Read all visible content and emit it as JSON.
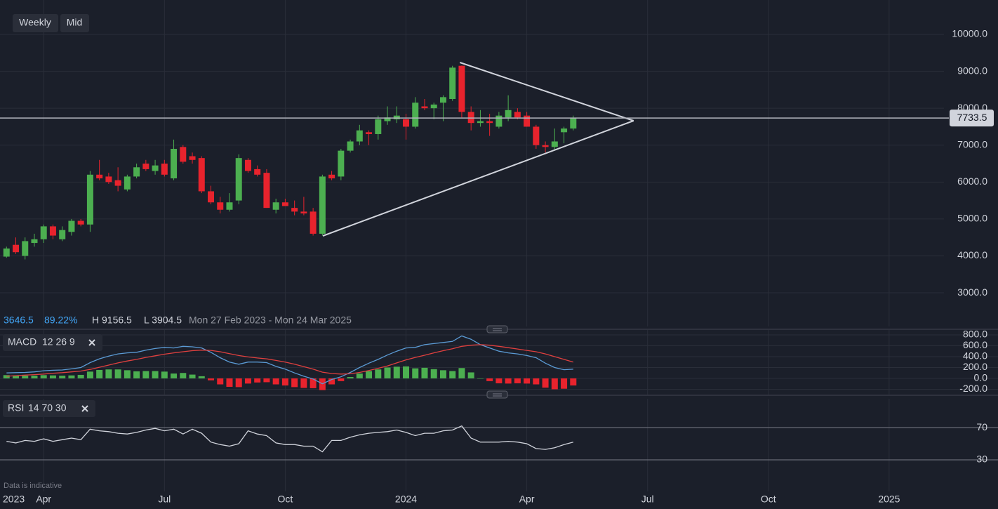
{
  "toolbar": {
    "interval": "Weekly",
    "mode": "Mid"
  },
  "legend_line": {
    "change": "3646.5",
    "change_pct": "89.22%",
    "high": "H 9156.5",
    "low": "L 3904.5",
    "range": "Mon 27 Feb 2023 - Mon 24 Mar 2025"
  },
  "footer_note": "Data is indicative",
  "chart_data": [
    {
      "type": "candlestick",
      "x_start_label": "2023",
      "xlim": [
        -4.7,
        96.9
      ],
      "xticks": [
        {
          "value": 0,
          "label": "Apr"
        },
        {
          "value": 13,
          "label": "Jul"
        },
        {
          "value": 26,
          "label": "Oct"
        },
        {
          "value": 39,
          "label": "2024"
        },
        {
          "value": 52,
          "label": "Apr"
        },
        {
          "value": 65,
          "label": "Jul"
        },
        {
          "value": 78,
          "label": "Oct"
        },
        {
          "value": 91,
          "label": "2025"
        }
      ],
      "ylim": [
        2088,
        10932
      ],
      "yticks": [
        {
          "value": 3000,
          "label": "3000.0"
        },
        {
          "value": 4000,
          "label": "4000.0"
        },
        {
          "value": 5000,
          "label": "5000.0"
        },
        {
          "value": 6000,
          "label": "6000.0"
        },
        {
          "value": 7000,
          "label": "7000.0"
        },
        {
          "value": 8000,
          "label": "8000.0"
        },
        {
          "value": 9000,
          "label": "9000.0"
        },
        {
          "value": 10000,
          "label": "10000.0"
        }
      ],
      "grid": true,
      "up_color": "#4caf50",
      "down_color": "#e8232d",
      "x": [
        -4,
        -3,
        -2,
        -1,
        0,
        1,
        2,
        3,
        4,
        5,
        6,
        7,
        8,
        9,
        10,
        11,
        12,
        13,
        14,
        15,
        16,
        17,
        18,
        19,
        20,
        21,
        22,
        23,
        24,
        25,
        26,
        27,
        28,
        29,
        30,
        31,
        32,
        33,
        34,
        35,
        36,
        37,
        38,
        39,
        40,
        41,
        42,
        43,
        44,
        45,
        46,
        47,
        48,
        49,
        50,
        51,
        52,
        53,
        54,
        55,
        56,
        57
      ],
      "open": [
        3980,
        4300,
        4000,
        4350,
        4450,
        4800,
        4450,
        4650,
        4950,
        4850,
        6200,
        6150,
        6050,
        5800,
        6150,
        6500,
        6300,
        6500,
        6100,
        6950,
        6700,
        6650,
        5750,
        5450,
        5250,
        5500,
        6600,
        6350,
        6250,
        5250,
        5450,
        5300,
        5200,
        5200,
        4600,
        6200,
        6150,
        6850,
        7100,
        7350,
        7300,
        7650,
        7700,
        7700,
        7500,
        8050,
        8000,
        8150,
        8250,
        9150,
        7900,
        7600,
        7650,
        7500,
        7750,
        7900,
        7800,
        7500,
        7000,
        6950,
        7350,
        7450
      ],
      "high": [
        4250,
        4500,
        4500,
        4600,
        4850,
        4850,
        4800,
        5000,
        5000,
        6300,
        6600,
        6250,
        6400,
        6200,
        6500,
        6600,
        6600,
        6600,
        7150,
        7000,
        6800,
        6700,
        5900,
        5600,
        5700,
        6750,
        6650,
        6450,
        6350,
        5550,
        5550,
        5500,
        5600,
        5300,
        6200,
        6300,
        6900,
        7150,
        7550,
        7400,
        7800,
        8050,
        8050,
        7850,
        8300,
        8250,
        8150,
        8350,
        9150,
        9156.5,
        8050,
        7950,
        7850,
        7900,
        8350,
        8000,
        7900,
        7550,
        7100,
        7450,
        7500,
        7800
      ],
      "low": [
        3950,
        4050,
        3904.5,
        4250,
        4350,
        4450,
        4400,
        4550,
        4800,
        4650,
        6050,
        5950,
        5750,
        5750,
        6100,
        6300,
        6200,
        6150,
        6050,
        6500,
        6500,
        5700,
        5400,
        5150,
        5200,
        5400,
        6250,
        6150,
        5300,
        5150,
        5350,
        5100,
        5100,
        4550,
        4550,
        6050,
        6050,
        6800,
        7000,
        7000,
        7150,
        7550,
        7600,
        7150,
        7450,
        7950,
        7700,
        7650,
        8200,
        7750,
        7400,
        7500,
        7250,
        7450,
        7650,
        7700,
        7500,
        6900,
        6800,
        6850,
        7050,
        7400
      ],
      "close": [
        4200,
        4100,
        4400,
        4450,
        4800,
        4550,
        4700,
        4950,
        4850,
        6200,
        6100,
        6000,
        5900,
        6150,
        6400,
        6350,
        6450,
        6200,
        6900,
        6550,
        6600,
        5750,
        5450,
        5250,
        5450,
        6650,
        6300,
        6200,
        5300,
        5450,
        5350,
        5200,
        5150,
        4600,
        6150,
        6100,
        6850,
        7100,
        7400,
        7300,
        7700,
        7750,
        7800,
        7500,
        8150,
        8000,
        8100,
        8300,
        9100,
        7900,
        7600,
        7650,
        7600,
        7800,
        7950,
        7750,
        7500,
        7000,
        6950,
        7100,
        7450,
        7733.5
      ],
      "trendlines": [
        {
          "x": [
            44.8,
            63.5
          ],
          "y": [
            9239,
            7660
          ]
        },
        {
          "x": [
            30.05,
            63.5
          ],
          "y": [
            4541,
            7660
          ]
        }
      ],
      "trendline_color": "#d1d4dc",
      "last_price": {
        "value": 7733.5,
        "label": "7733.5"
      }
    },
    {
      "type": "macd",
      "label": "MACD",
      "params": "12 26 9",
      "ylim": [
        -297,
        890
      ],
      "yticks": [
        {
          "value": 800,
          "label": "800.0"
        },
        {
          "value": 600,
          "label": "600.0"
        },
        {
          "value": 400,
          "label": "400.0"
        },
        {
          "value": 200,
          "label": "200.0"
        },
        {
          "value": 0,
          "label": "0.0"
        },
        {
          "value": -200,
          "label": "-200.0"
        }
      ],
      "grid": true,
      "histogram": {
        "up_color": "#4caf50",
        "down_color": "#e8232d",
        "values": [
          60,
          55,
          50,
          50,
          60,
          55,
          50,
          55,
          65,
          125,
          155,
          165,
          165,
          150,
          130,
          135,
          135,
          125,
          90,
          100,
          70,
          40,
          -35,
          -110,
          -155,
          -160,
          -95,
          -75,
          -70,
          -110,
          -130,
          -160,
          -175,
          -180,
          -215,
          -110,
          -50,
          25,
          90,
          135,
          165,
          200,
          215,
          220,
          185,
          195,
          170,
          150,
          135,
          190,
          110,
          0,
          -50,
          -90,
          -95,
          -90,
          -95,
          -110,
          -170,
          -200,
          -190,
          -130
        ]
      },
      "series": [
        {
          "color": "#5b9bd5",
          "values": [
            100,
            105,
            110,
            120,
            140,
            150,
            155,
            175,
            200,
            290,
            360,
            410,
            450,
            470,
            480,
            520,
            550,
            570,
            560,
            590,
            580,
            560,
            480,
            380,
            300,
            260,
            300,
            300,
            290,
            220,
            170,
            100,
            40,
            -10,
            -100,
            -20,
            30,
            110,
            200,
            280,
            350,
            430,
            500,
            560,
            570,
            620,
            640,
            660,
            680,
            780,
            720,
            620,
            560,
            500,
            470,
            450,
            420,
            380,
            280,
            200,
            160,
            170
          ]
        },
        {
          "color": "#e0403f",
          "values": [
            40,
            50,
            60,
            70,
            80,
            95,
            105,
            120,
            135,
            165,
            205,
            245,
            285,
            320,
            350,
            385,
            415,
            445,
            470,
            490,
            510,
            520,
            515,
            490,
            455,
            420,
            395,
            375,
            360,
            330,
            300,
            260,
            215,
            170,
            115,
            90,
            80,
            85,
            110,
            145,
            185,
            230,
            285,
            340,
            385,
            425,
            470,
            510,
            545,
            590,
            610,
            620,
            610,
            590,
            565,
            540,
            515,
            490,
            450,
            400,
            350,
            300
          ]
        }
      ]
    },
    {
      "type": "rsi",
      "label": "RSI",
      "params": "14 70 30",
      "ylim": [
        -9.1,
        105.7
      ],
      "yticks": [
        70,
        30
      ],
      "grid": true,
      "series": [
        {
          "color": "#d1d4dc",
          "values": [
            53,
            51,
            54,
            53,
            56,
            53,
            55,
            57,
            55,
            68,
            66,
            65,
            63,
            62,
            64,
            67,
            69,
            66,
            68,
            62,
            68,
            63,
            52,
            49,
            47,
            50,
            66,
            62,
            60,
            51,
            49,
            49,
            47,
            47,
            40,
            54,
            54,
            58,
            61,
            63,
            64,
            65,
            67,
            64,
            60,
            63,
            63,
            66,
            67,
            72,
            57,
            52,
            52,
            52,
            53,
            52,
            50,
            44,
            43,
            45,
            49,
            52
          ]
        }
      ]
    }
  ]
}
